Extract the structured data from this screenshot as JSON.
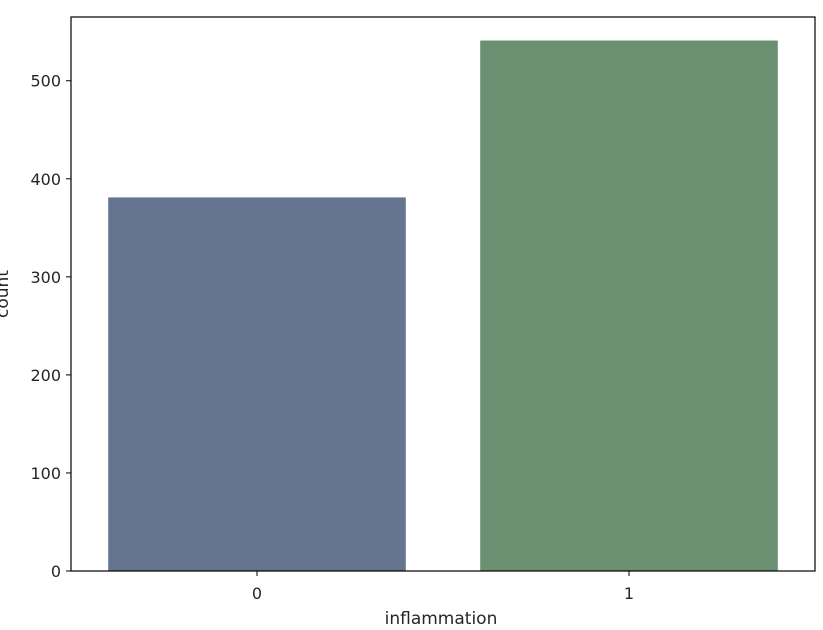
{
  "chart_data": {
    "type": "bar",
    "categories": [
      "0",
      "1"
    ],
    "values": [
      381,
      541
    ],
    "colors": [
      "#65748f",
      "#6a8f71"
    ],
    "xlabel": "inflammation",
    "ylabel": "count",
    "ylim": [
      0,
      565
    ],
    "yticks": [
      0,
      100,
      200,
      300,
      400,
      500
    ],
    "grid": false,
    "legend": "none"
  }
}
